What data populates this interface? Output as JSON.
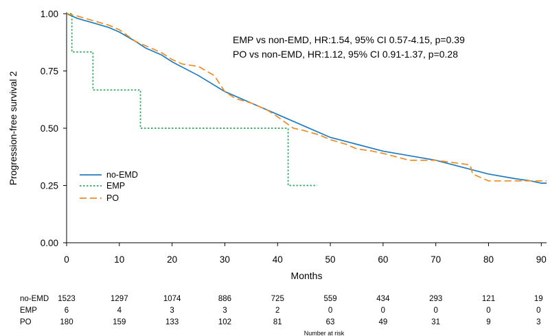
{
  "chart_data": {
    "type": "line",
    "subtype": "kaplan-meier",
    "xlabel": "Months",
    "ylabel": "Progression-free survival 2",
    "xlim": [
      0,
      91
    ],
    "ylim": [
      0,
      1
    ],
    "x_ticks": [
      0,
      10,
      20,
      30,
      40,
      50,
      60,
      70,
      80,
      90
    ],
    "y_ticks": [
      0.0,
      0.25,
      0.5,
      0.75,
      1.0
    ],
    "y_tick_labels": [
      "0.00",
      "0.25",
      "0.50",
      "0.75",
      "1.00"
    ],
    "grid": false,
    "legend_position": "left",
    "annotations": [
      "EMP vs non-EMD, HR:1.54, 95% CI 0.57-4.15, p=0.39",
      "PO vs non-EMD, HR:1.12, 95% CI 0.91-1.37, p=0.28"
    ],
    "series": [
      {
        "name": "no-EMD",
        "color": "#1f7bbf",
        "dash": "solid",
        "x": [
          0,
          2,
          5,
          8,
          10,
          13,
          15,
          18,
          20,
          25,
          30,
          35,
          40,
          45,
          50,
          55,
          60,
          65,
          70,
          75,
          80,
          85,
          88,
          90,
          91
        ],
        "y": [
          1.0,
          0.98,
          0.96,
          0.94,
          0.92,
          0.88,
          0.85,
          0.82,
          0.79,
          0.73,
          0.66,
          0.61,
          0.56,
          0.51,
          0.46,
          0.43,
          0.4,
          0.38,
          0.36,
          0.33,
          0.3,
          0.28,
          0.27,
          0.26,
          0.26
        ]
      },
      {
        "name": "EMP",
        "color": "#2aa85a",
        "dash": "dotted",
        "x": [
          0,
          1,
          5,
          14,
          42,
          47.5
        ],
        "y": [
          1.0,
          0.833,
          0.667,
          0.5,
          0.25,
          0.25
        ]
      },
      {
        "name": "PO",
        "color": "#f08a1c",
        "dash": "dashed",
        "x": [
          0,
          2,
          5,
          8,
          10,
          13,
          15,
          18,
          20,
          22,
          25,
          28,
          30,
          32,
          35,
          38,
          40,
          43,
          45,
          48,
          50,
          53,
          55,
          58,
          60,
          65,
          70,
          76.5,
          77,
          80,
          85,
          91
        ],
        "y": [
          1.0,
          0.99,
          0.97,
          0.95,
          0.93,
          0.88,
          0.86,
          0.83,
          0.8,
          0.78,
          0.77,
          0.73,
          0.66,
          0.63,
          0.61,
          0.58,
          0.55,
          0.5,
          0.49,
          0.47,
          0.45,
          0.43,
          0.41,
          0.4,
          0.39,
          0.36,
          0.36,
          0.34,
          0.3,
          0.27,
          0.27,
          0.27
        ]
      }
    ],
    "risk_table": {
      "caption": "Number at risk",
      "times": [
        0,
        10,
        20,
        30,
        40,
        50,
        60,
        70,
        80,
        90
      ],
      "rows": [
        {
          "label": "no-EMD",
          "values": [
            "1523",
            "1297",
            "1074",
            "886",
            "725",
            "559",
            "434",
            "293",
            "121",
            "19"
          ]
        },
        {
          "label": "EMP",
          "values": [
            "6",
            "4",
            "3",
            "3",
            "2",
            "0",
            "0",
            "0",
            "0",
            "0"
          ]
        },
        {
          "label": "PO",
          "values": [
            "180",
            "159",
            "133",
            "102",
            "81",
            "63",
            "49",
            "31",
            "9",
            "3"
          ]
        }
      ]
    }
  }
}
